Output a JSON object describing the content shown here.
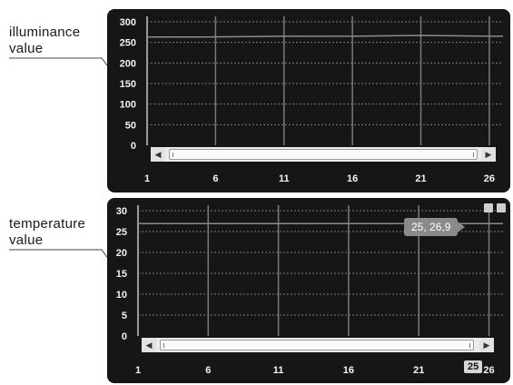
{
  "callouts": {
    "illuminance": [
      "illuminance",
      "value"
    ],
    "temperature": [
      "temperature",
      "value"
    ]
  },
  "icons": {
    "scroll_left": "◀",
    "scroll_right": "▶",
    "save": "save-icon",
    "print": "print-icon"
  },
  "colors": {
    "panel_bg": "#161616",
    "series_line": "#8c8c8c",
    "grid_line": "#7a7a7a"
  },
  "tooltip": {
    "text": "25, 26,9"
  },
  "x_marker": {
    "text": "25"
  },
  "chart_data": [
    {
      "type": "line",
      "title": "",
      "xlabel": "",
      "ylabel": "",
      "x_ticks": [
        1,
        6,
        11,
        16,
        21,
        26
      ],
      "y_ticks": [
        0,
        50,
        100,
        150,
        200,
        250,
        300
      ],
      "xlim": [
        1,
        27
      ],
      "ylim": [
        0,
        300
      ],
      "grid": true,
      "series": [
        {
          "x": [
            1,
            5,
            11,
            16,
            21,
            26,
            27
          ],
          "values": [
            263,
            263,
            265,
            265,
            267,
            265,
            265
          ]
        }
      ]
    },
    {
      "type": "line",
      "title": "",
      "xlabel": "",
      "ylabel": "",
      "x_ticks": [
        1,
        6,
        11,
        16,
        21,
        26
      ],
      "y_ticks": [
        0,
        5,
        10,
        15,
        20,
        25,
        30
      ],
      "xlim": [
        1,
        27
      ],
      "ylim": [
        0,
        30
      ],
      "grid": true,
      "series": [
        {
          "x": [
            1,
            6,
            11,
            16,
            21,
            25,
            27
          ],
          "values": [
            26.9,
            26.9,
            26.9,
            26.9,
            26.9,
            26.9,
            26.9
          ]
        }
      ]
    }
  ]
}
